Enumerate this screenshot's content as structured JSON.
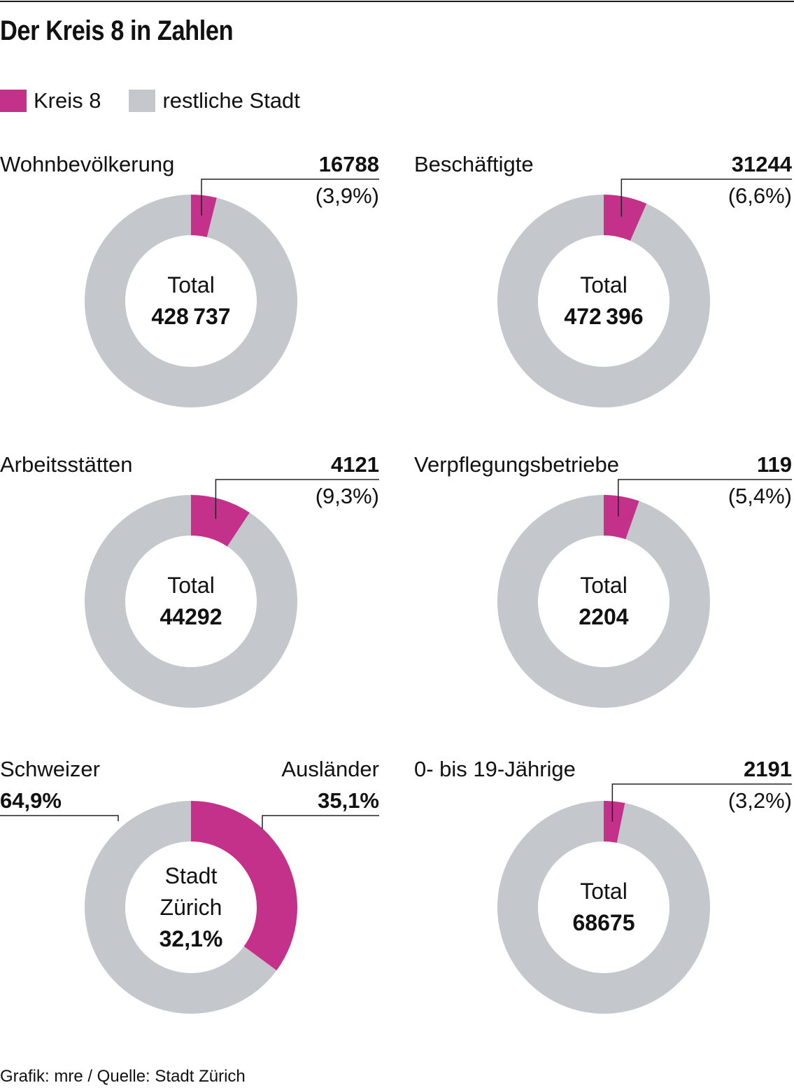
{
  "title": "Der Kreis 8 in Zahlen",
  "legend": {
    "items": [
      {
        "label": "Kreis 8",
        "color": "#c4318a"
      },
      {
        "label": "restliche Stadt",
        "color": "#c4c8cc"
      }
    ]
  },
  "colors": {
    "highlight": "#c4318a",
    "rest": "#c4c8cc"
  },
  "footer": "Grafik: mre / Quelle: Stadt Zürich",
  "chart_data": [
    {
      "type": "pie",
      "variant": "donut",
      "title": "Wohnbevölkerung",
      "value_label": "16788",
      "percent_label": "(3,9%)",
      "share": 3.9,
      "center_lines": [
        "Total"
      ],
      "center_value": "428737"
    },
    {
      "type": "pie",
      "variant": "donut",
      "title": "Beschäftigte",
      "value_label": "31244",
      "percent_label": "(6,6%)",
      "share": 6.6,
      "center_lines": [
        "Total"
      ],
      "center_value": "472396"
    },
    {
      "type": "pie",
      "variant": "donut",
      "title": "Arbeitsstätten",
      "value_label": "4121",
      "percent_label": "(9,3%)",
      "share": 9.3,
      "center_lines": [
        "Total"
      ],
      "center_value": "44292"
    },
    {
      "type": "pie",
      "variant": "donut",
      "title": "Verpflegungsbetriebe",
      "value_label": "119",
      "percent_label": "(5,4%)",
      "share": 5.4,
      "center_lines": [
        "Total"
      ],
      "center_value": "2204"
    },
    {
      "type": "pie",
      "variant": "donut",
      "title": "",
      "left_label": "Schweizer",
      "left_value": "64,9%",
      "right_label": "Ausländer",
      "right_value": "35,1%",
      "share": 35.1,
      "center_lines": [
        "Stadt",
        "Zürich"
      ],
      "center_value": "32,1%"
    },
    {
      "type": "pie",
      "variant": "donut",
      "title": "0- bis 19-Jährige",
      "value_label": "2191",
      "percent_label": "(3,2%)",
      "share": 3.2,
      "center_lines": [
        "Total"
      ],
      "center_value": "68675"
    }
  ]
}
